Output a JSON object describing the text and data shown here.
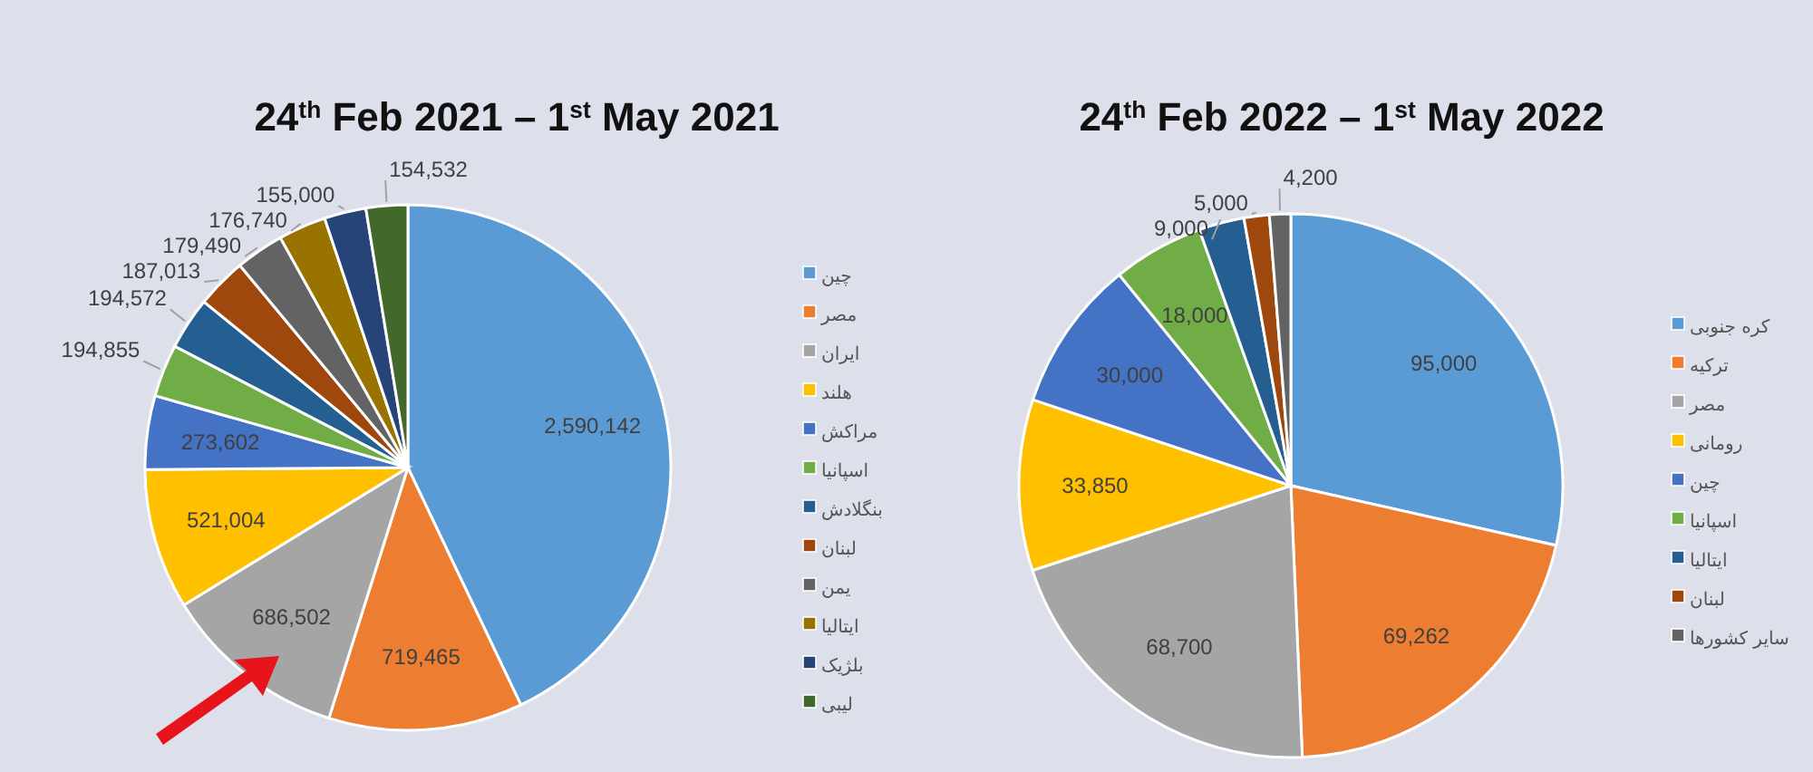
{
  "chart_data": [
    {
      "type": "pie",
      "title": "24$^{th}$ Feb 2021 – 1$^{st}$ May 2021",
      "categories": [
        "چین",
        "مصر",
        "ایران",
        "هلند",
        "مراکش",
        "اسپانیا",
        "بنگلادش",
        "لبنان",
        "یمن",
        "ایتالیا",
        "بلژیک",
        "لیبی"
      ],
      "values": [
        2590142,
        719465,
        686502,
        521004,
        273602,
        194855,
        194572,
        187013,
        179490,
        176740,
        155000,
        154532
      ],
      "colors": [
        "#5b9bd5",
        "#ed7d31",
        "#a5a5a5",
        "#ffc000",
        "#4472c4",
        "#70ad47",
        "#255e91",
        "#9e480e",
        "#636363",
        "#997300",
        "#264478",
        "#43682b"
      ],
      "value_labels": [
        "2,590,142",
        "719,465",
        "686,502",
        "521,004",
        "273,602",
        "194,855",
        "194,572",
        "187,013",
        "179,490",
        "176,740",
        "155,000",
        "154,532"
      ],
      "legend": "right"
    },
    {
      "type": "pie",
      "title": "24$^{th}$ Feb 2022 – 1$^{st}$ May 2022",
      "categories": [
        "کره جنوبی",
        "ترکیه",
        "مصر",
        "رومانی",
        "چین",
        "اسپانیا",
        "ایتالیا",
        "لبنان",
        "سایر کشورها"
      ],
      "values": [
        95000,
        69262,
        68700,
        33850,
        30000,
        18000,
        9000,
        5000,
        4200
      ],
      "colors": [
        "#5b9bd5",
        "#ed7d31",
        "#a5a5a5",
        "#ffc000",
        "#4472c4",
        "#70ad47",
        "#255e91",
        "#9e480e",
        "#636363"
      ],
      "value_labels": [
        "95,000",
        "69,262",
        "68,700",
        "33,850",
        "30,000",
        "18,000",
        "9,000",
        "5,000",
        "4,200"
      ],
      "legend": "right"
    }
  ]
}
